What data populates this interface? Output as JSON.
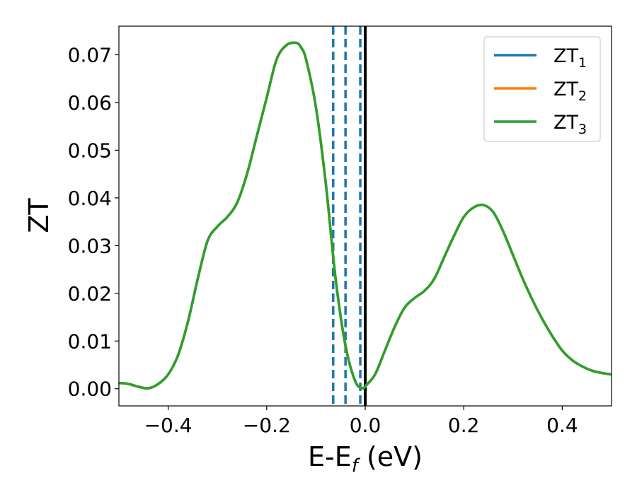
{
  "chart_data": {
    "type": "line",
    "xlabel": {
      "main": "E-E",
      "sub": "f",
      "tail": " (eV)"
    },
    "ylabel": "ZT",
    "xlim": [
      -0.5,
      0.5
    ],
    "ylim": [
      -0.0036,
      0.076
    ],
    "xticks": [
      -0.4,
      -0.2,
      0.0,
      0.2,
      0.4
    ],
    "xtick_labels": [
      "−0.4",
      "−0.2",
      "0.0",
      "0.2",
      "0.4"
    ],
    "yticks": [
      0.0,
      0.01,
      0.02,
      0.03,
      0.04,
      0.05,
      0.06,
      0.07
    ],
    "ytick_labels": [
      "0.00",
      "0.01",
      "0.02",
      "0.03",
      "0.04",
      "0.05",
      "0.06",
      "0.07"
    ],
    "grid": false,
    "legend_position": "top-right",
    "series": [
      {
        "name": "ZT",
        "sub": "1",
        "color": "#1f77b4"
      },
      {
        "name": "ZT",
        "sub": "2",
        "color": "#ff7f0e"
      },
      {
        "name": "ZT",
        "sub": "3",
        "color": "#2ca02c",
        "x": [
          -0.5,
          -0.48,
          -0.46,
          -0.44,
          -0.42,
          -0.4,
          -0.38,
          -0.36,
          -0.34,
          -0.32,
          -0.3,
          -0.28,
          -0.26,
          -0.24,
          -0.22,
          -0.2,
          -0.18,
          -0.16,
          -0.14,
          -0.13,
          -0.12,
          -0.1,
          -0.08,
          -0.06,
          -0.04,
          -0.02,
          -0.005,
          0.0,
          0.02,
          0.04,
          0.06,
          0.08,
          0.1,
          0.12,
          0.14,
          0.16,
          0.18,
          0.2,
          0.22,
          0.24,
          0.26,
          0.28,
          0.3,
          0.32,
          0.34,
          0.36,
          0.38,
          0.4,
          0.42,
          0.44,
          0.46,
          0.48,
          0.5
        ],
        "y": [
          0.0012,
          0.001,
          0.0004,
          0.0001,
          0.001,
          0.003,
          0.007,
          0.014,
          0.023,
          0.031,
          0.034,
          0.036,
          0.039,
          0.045,
          0.053,
          0.061,
          0.069,
          0.072,
          0.0725,
          0.0715,
          0.069,
          0.059,
          0.043,
          0.023,
          0.009,
          0.0015,
          0.0001,
          0.0005,
          0.003,
          0.008,
          0.013,
          0.017,
          0.019,
          0.0205,
          0.023,
          0.0275,
          0.032,
          0.036,
          0.038,
          0.0385,
          0.037,
          0.033,
          0.028,
          0.023,
          0.0185,
          0.0145,
          0.011,
          0.008,
          0.006,
          0.0047,
          0.0038,
          0.0033,
          0.003
        ]
      }
    ],
    "vlines": [
      {
        "x": -0.065,
        "style": "dashed",
        "color": "#1f77b4"
      },
      {
        "x": -0.04,
        "style": "dashed",
        "color": "#1f77b4"
      },
      {
        "x": -0.01,
        "style": "dashed",
        "color": "#1f77b4"
      },
      {
        "x": 0.0,
        "style": "solid",
        "color": "#000000"
      }
    ]
  }
}
